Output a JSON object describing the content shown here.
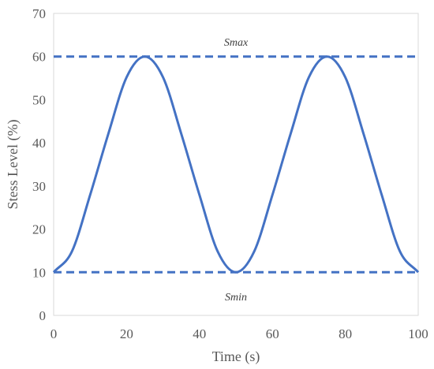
{
  "chart_data": {
    "type": "line",
    "title": "",
    "xlabel": "Time (s)",
    "ylabel": "Stess Level (%)",
    "xlim": [
      0,
      100
    ],
    "ylim": [
      0,
      70
    ],
    "xticks": [
      "0",
      "20",
      "40",
      "60",
      "80",
      "100"
    ],
    "yticks": [
      "0",
      "10",
      "20",
      "30",
      "40",
      "50",
      "60",
      "70"
    ],
    "grid": false,
    "legend": "none",
    "series": [
      {
        "color": "#4472C4",
        "style": "solid",
        "x": [
          0,
          5,
          10,
          15,
          20,
          25,
          30,
          35,
          40,
          45,
          50,
          55,
          60,
          65,
          70,
          75,
          80,
          85,
          90,
          95,
          100
        ],
        "y": [
          10,
          14.8,
          27.9,
          42.1,
          55.2,
          60,
          55.2,
          42.1,
          27.9,
          14.8,
          10,
          14.8,
          27.9,
          42.1,
          55.2,
          60,
          55.2,
          42.1,
          27.9,
          14.8,
          10
        ]
      },
      {
        "color": "#4472C4",
        "style": "dashed",
        "x": [
          0,
          100
        ],
        "y": [
          60,
          60
        ]
      },
      {
        "color": "#4472C4",
        "style": "dashed",
        "x": [
          0,
          100
        ],
        "y": [
          10,
          10
        ]
      }
    ],
    "annotations": [
      {
        "text": "Smax",
        "x": 50,
        "y": 62.5
      },
      {
        "text": "Smin",
        "x": 50,
        "y": 3.5
      }
    ]
  }
}
